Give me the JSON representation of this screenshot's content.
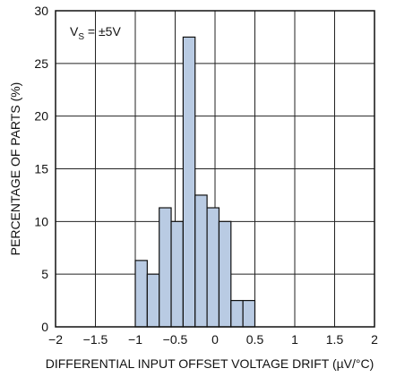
{
  "chart_data": {
    "type": "bar",
    "x_bin_edges": [
      -1.0,
      -0.85,
      -0.7,
      -0.55,
      -0.4,
      -0.25,
      -0.1,
      0.05,
      0.2,
      0.35,
      0.5,
      0.65,
      0.8,
      0.95
    ],
    "values": [
      6.3,
      5.0,
      11.3,
      10.0,
      27.5,
      12.5,
      11.3,
      10.0,
      2.5,
      2.5,
      0,
      0,
      0
    ],
    "xlim": [
      -2,
      2
    ],
    "ylim": [
      0,
      30
    ],
    "xticks": [
      -2,
      -1.5,
      -1,
      -0.5,
      0,
      0.5,
      1,
      1.5,
      2
    ],
    "xtick_labels": [
      "−2",
      "−1.5",
      "−1",
      "−0.5",
      "0",
      "0.5",
      "1",
      "1.5",
      "2"
    ],
    "yticks": [
      0,
      5,
      10,
      15,
      20,
      25,
      30
    ],
    "ytick_labels": [
      "0",
      "5",
      "10",
      "15",
      "20",
      "25",
      "30"
    ],
    "xlabel": "DIFFERENTIAL INPUT OFFSET VOLTAGE DRIFT (µV/°C)",
    "ylabel": "PERCENTAGE OF PARTS (%)",
    "annotation": {
      "prefix": "V",
      "subscript": "S",
      "suffix": " = ±5V"
    },
    "grid": true,
    "colors": {
      "bar_fill": "#b9cbe3",
      "bar_stroke": "#111111",
      "grid": "#222222",
      "frame": "#111111"
    }
  }
}
